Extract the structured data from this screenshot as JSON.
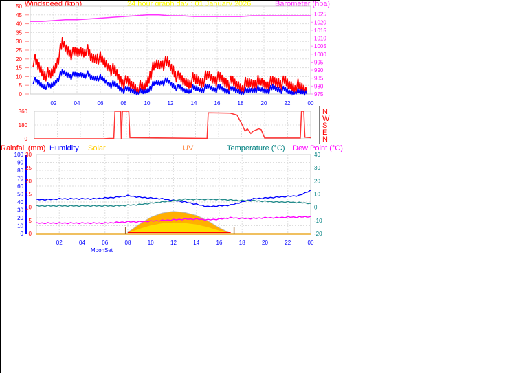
{
  "title": "24 hour graph day : 01 January 2026",
  "colors": {
    "gust": "#ff0000",
    "avg": "#0000ff",
    "baro": "#ff33ff",
    "direction": "#ff3333",
    "humidity": "#0000ff",
    "temperature": "#228b8b",
    "dewpoint": "#ff00ff",
    "solar": "#ffaa00",
    "uv": "#ff8800",
    "rainfall": "#ff0000",
    "title": "#ffff00",
    "time_axis": "#0000ff"
  },
  "chart_data": [
    {
      "type": "line",
      "name": "wind-baro",
      "left_axis_label": "Windspeed (kph)",
      "right_axis_label": "Barometer (hpa)",
      "ylim": [
        0,
        50
      ],
      "yticks": [
        0,
        5,
        10,
        15,
        20,
        25,
        30,
        35,
        40,
        45,
        50
      ],
      "y2lim": [
        975,
        1030
      ],
      "y2ticks": [
        975,
        980,
        985,
        990,
        995,
        1000,
        1005,
        1010,
        1015,
        1020,
        1025
      ],
      "xlim": [
        0,
        24
      ],
      "xticks": [
        "02",
        "04",
        "06",
        "08",
        "10",
        "12",
        "14",
        "16",
        "18",
        "20",
        "22",
        "00"
      ],
      "grid": true,
      "series": [
        {
          "key": "gust",
          "x_step_hours": 0.5,
          "values": [
            20,
            15,
            12,
            10,
            18,
            28,
            25,
            22,
            24,
            26,
            20,
            22,
            18,
            16,
            12,
            8,
            6,
            5,
            4,
            3,
            12,
            16,
            18,
            17,
            14,
            8,
            7,
            8,
            8,
            8,
            10,
            9,
            8,
            7,
            6,
            5,
            5,
            6,
            7,
            6,
            6,
            6,
            7,
            6,
            5,
            5,
            3,
            3
          ]
        },
        {
          "key": "avg",
          "x_step_hours": 0.5,
          "values": [
            8,
            6,
            5,
            4,
            8,
            12,
            11,
            10,
            11,
            12,
            9,
            10,
            8,
            6,
            5,
            3,
            2,
            2,
            1,
            1,
            4,
            6,
            7,
            7,
            5,
            3,
            2,
            3,
            3,
            3,
            4,
            3,
            3,
            2,
            2,
            2,
            1,
            2,
            3,
            2,
            2,
            3,
            3,
            2,
            1,
            1,
            1,
            1
          ]
        },
        {
          "key": "baro",
          "axis": "right",
          "x_step_hours": 1,
          "values": [
            1020.5,
            1020.5,
            1021,
            1021.5,
            1021.5,
            1022,
            1022.5,
            1023,
            1023.5,
            1024,
            1024.5,
            1024.5,
            1024,
            1024,
            1023.5,
            1023.5,
            1023.5,
            1023.5,
            1023.5,
            1024,
            1024,
            1024,
            1024,
            1024,
            1024
          ]
        }
      ]
    },
    {
      "type": "line",
      "name": "wind-direction",
      "ylim": [
        0,
        360
      ],
      "yticks": [
        0,
        180,
        360
      ],
      "right_labels": [
        "N",
        "W",
        "S",
        "E",
        "N"
      ],
      "xlim": [
        0,
        24
      ],
      "grid": true,
      "points": [
        [
          0,
          0
        ],
        [
          6,
          0
        ],
        [
          6.5,
          5
        ],
        [
          6.9,
          5
        ],
        [
          7,
          360
        ],
        [
          7.5,
          360
        ],
        [
          7.55,
          0
        ],
        [
          7.65,
          360
        ],
        [
          8.2,
          360
        ],
        [
          8.3,
          15
        ],
        [
          15,
          5
        ],
        [
          15.1,
          340
        ],
        [
          17,
          335
        ],
        [
          17.6,
          310
        ],
        [
          18,
          200
        ],
        [
          18.3,
          100
        ],
        [
          18.5,
          130
        ],
        [
          18.8,
          70
        ],
        [
          19,
          100
        ],
        [
          19.5,
          130
        ],
        [
          19.7,
          120
        ],
        [
          20,
          10
        ],
        [
          23.1,
          10
        ],
        [
          23.2,
          360
        ],
        [
          23.4,
          360
        ],
        [
          23.5,
          20
        ],
        [
          24,
          15
        ]
      ]
    },
    {
      "type": "line",
      "name": "temp-humidity",
      "labels": {
        "rainfall": "Rainfall (mm)",
        "humidity": "Humidity",
        "solar": "Solar",
        "uv": "UV",
        "temperature": "Temperature (°C)",
        "dewpoint": "Dew Point (°C)"
      },
      "humidity_lim": [
        0,
        100
      ],
      "humidity_ticks": [
        0,
        10,
        20,
        30,
        40,
        50,
        60,
        70,
        80,
        90,
        100
      ],
      "rain_lim": [
        0,
        30
      ],
      "rain_ticks": [
        0,
        5,
        10,
        15,
        20,
        25,
        30
      ],
      "temp_lim": [
        -20,
        40
      ],
      "temp_ticks": [
        -20,
        -10,
        0,
        10,
        20,
        30,
        40
      ],
      "xlim": [
        0,
        24
      ],
      "xticks": [
        "02",
        "04",
        "06",
        "08",
        "10",
        "12",
        "14",
        "16",
        "18",
        "20",
        "22",
        "00"
      ],
      "annotation": "MoonSet",
      "sunrise_hour": 7.8,
      "sunset_hour": 17.3,
      "grid": true,
      "series": [
        {
          "key": "humidity",
          "x_step_hours": 1,
          "values": [
            43,
            43,
            44,
            44,
            44,
            44,
            45,
            46,
            48,
            46,
            45,
            44,
            42,
            40,
            37,
            34,
            35,
            36,
            40,
            44,
            45,
            46,
            47,
            48,
            55
          ]
        },
        {
          "key": "temperature",
          "x_step_hours": 1,
          "values": [
            1,
            1,
            1,
            1,
            1,
            1,
            1,
            1,
            1.5,
            2,
            3,
            4,
            5,
            6,
            6,
            6,
            6,
            5.5,
            5,
            5,
            4.5,
            4,
            4,
            3.5,
            3
          ]
        },
        {
          "key": "dewpoint",
          "x_step_hours": 1,
          "values": [
            -12,
            -12,
            -12,
            -12,
            -12,
            -12,
            -12,
            -11.5,
            -11,
            -11,
            -10.5,
            -10,
            -9.5,
            -9,
            -9,
            -9.5,
            -9,
            -8,
            -8.5,
            -8.5,
            -8,
            -8,
            -7.5,
            -7.5,
            -7
          ]
        },
        {
          "key": "solar_relative",
          "x_step_hours": 1,
          "values": [
            0,
            0,
            0,
            0,
            0,
            0,
            0,
            0,
            0.05,
            0.4,
            0.7,
            0.88,
            0.95,
            0.9,
            0.78,
            0.55,
            0.25,
            0,
            0,
            0,
            0,
            0,
            0,
            0,
            0
          ]
        },
        {
          "key": "rainfall",
          "x_step_hours": 24,
          "values": [
            0,
            0
          ]
        }
      ]
    }
  ]
}
